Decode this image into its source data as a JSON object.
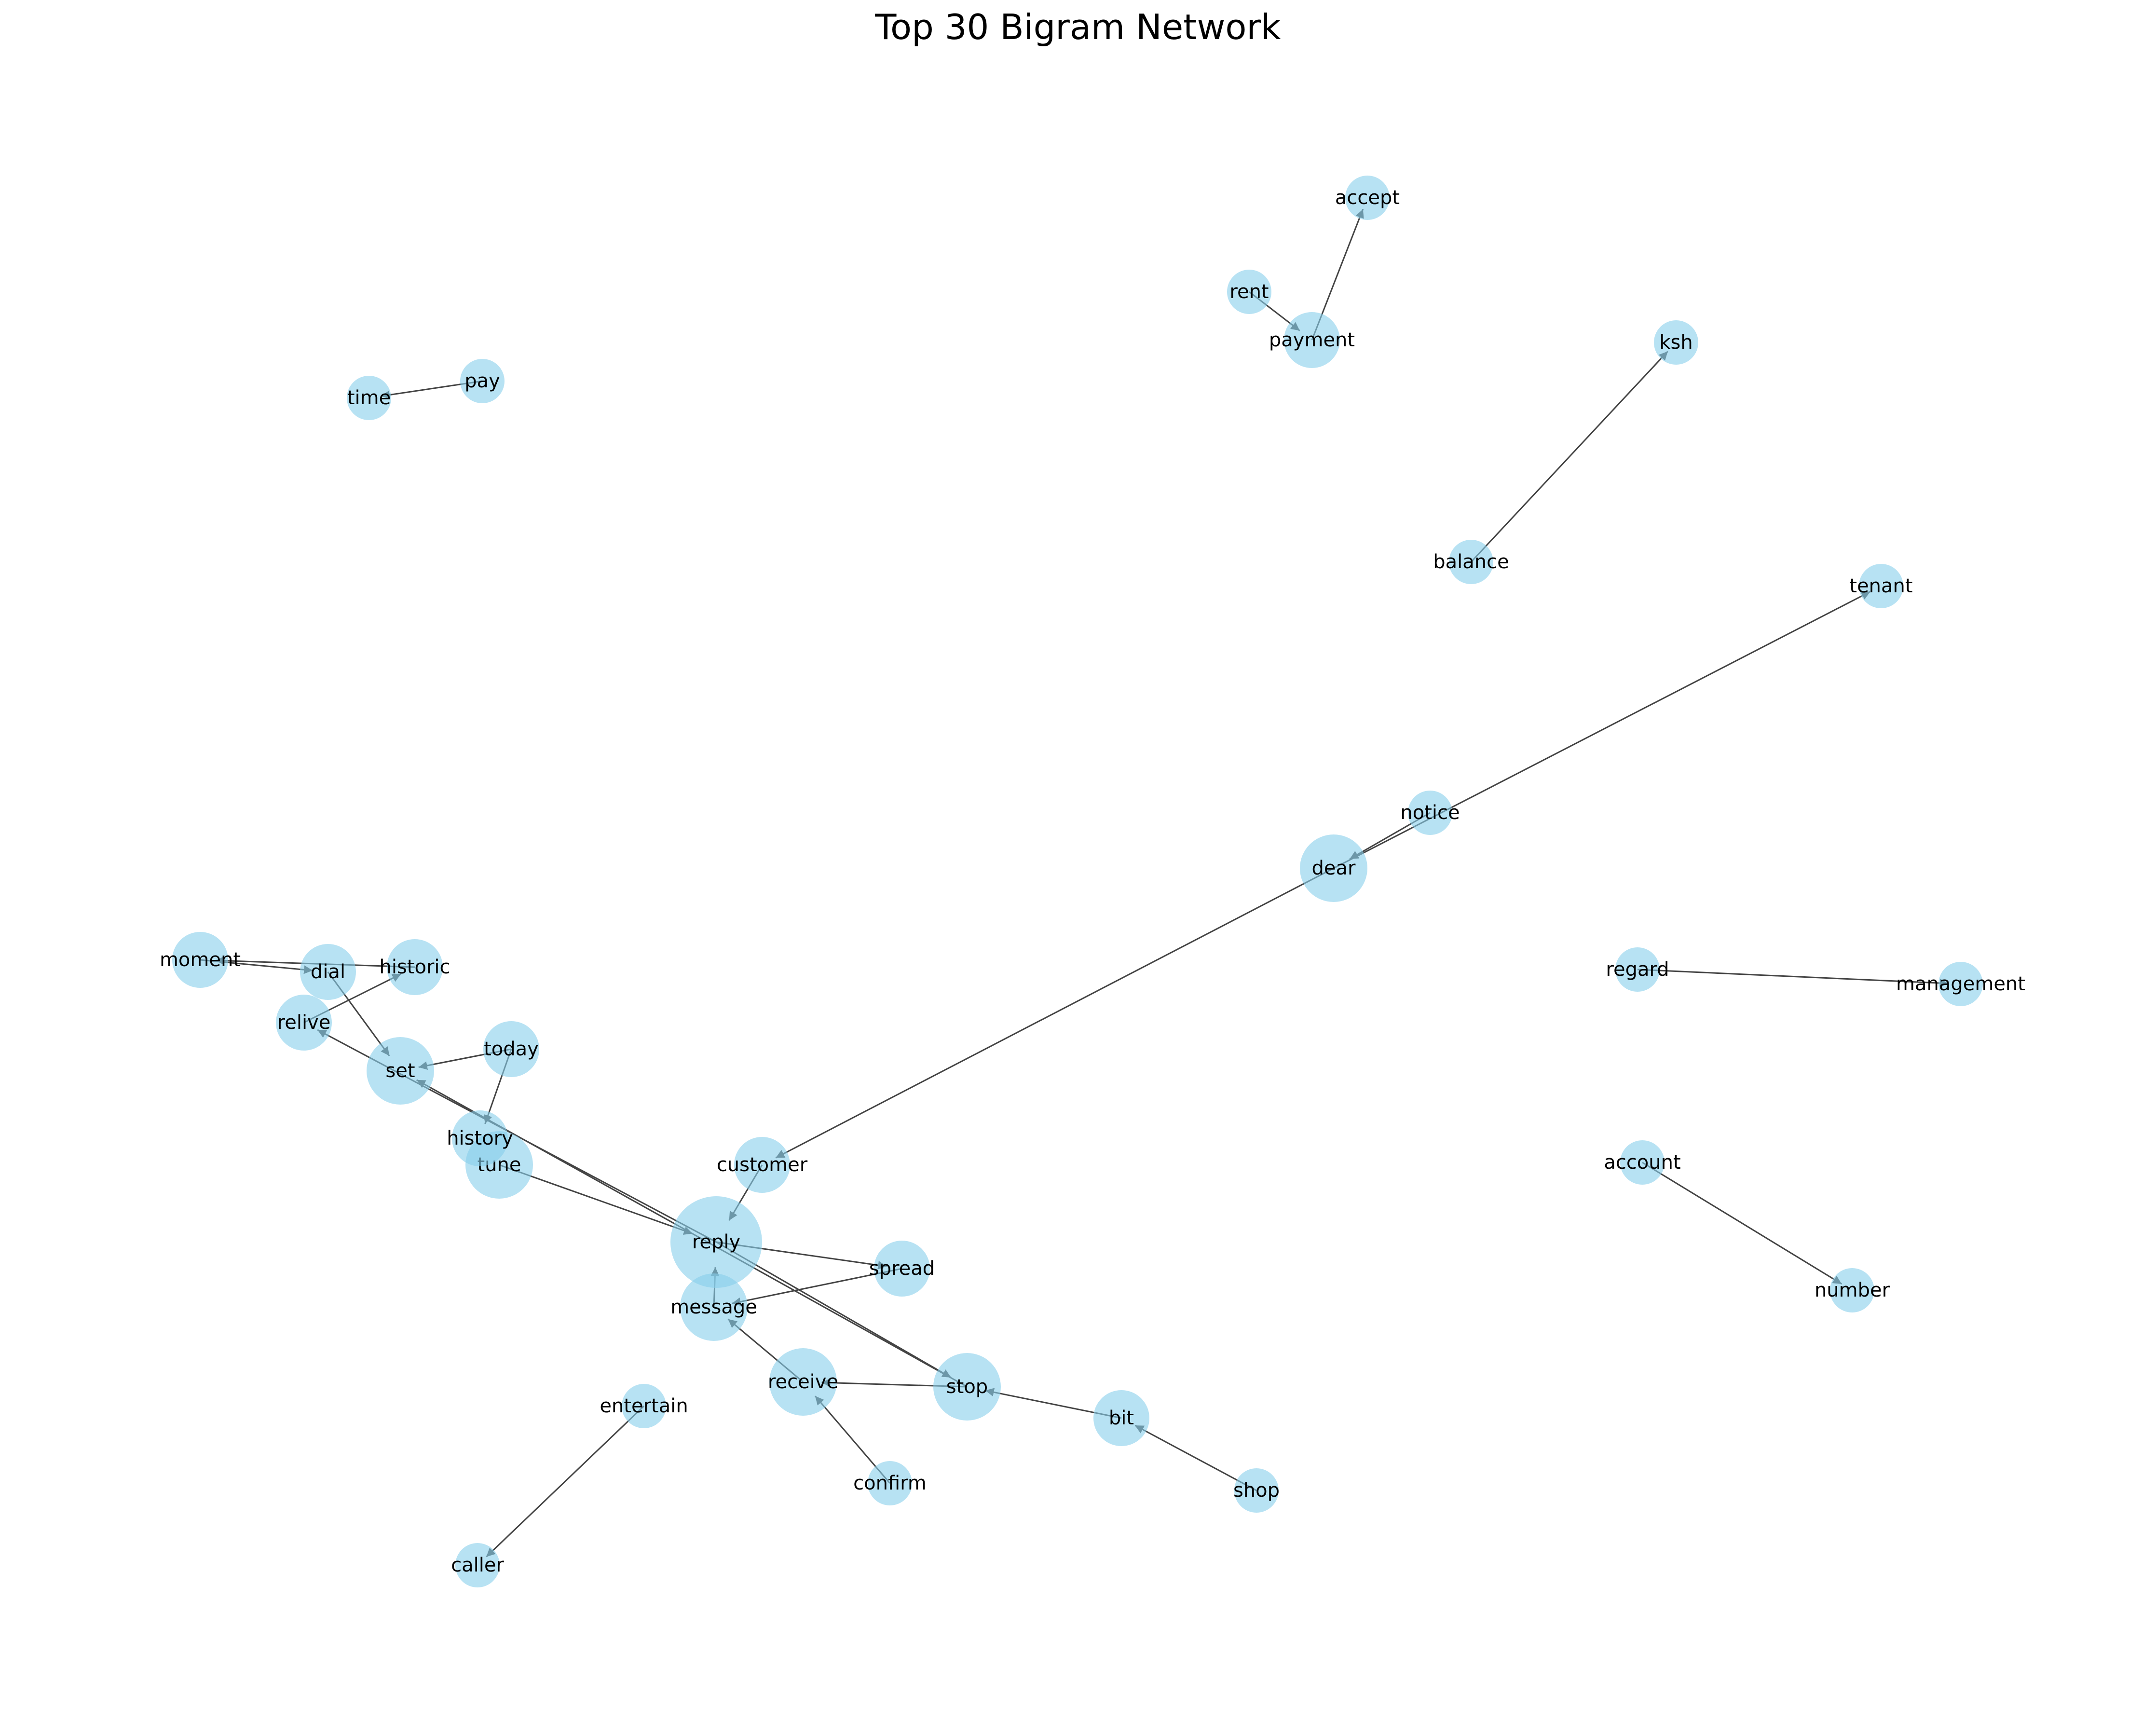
{
  "title": "Top 30 Bigram Network",
  "style": {
    "node_color": "#87ceeb",
    "edge_color": "#444444"
  },
  "nodes": [
    {
      "id": "reply",
      "size": "xl"
    },
    {
      "id": "dear",
      "size": "l"
    },
    {
      "id": "tune",
      "size": "l"
    },
    {
      "id": "stop",
      "size": "l"
    },
    {
      "id": "message",
      "size": "l"
    },
    {
      "id": "set",
      "size": "l"
    },
    {
      "id": "receive",
      "size": "l"
    },
    {
      "id": "moment",
      "size": "m"
    },
    {
      "id": "historic",
      "size": "m"
    },
    {
      "id": "dial",
      "size": "m"
    },
    {
      "id": "today",
      "size": "m"
    },
    {
      "id": "customer",
      "size": "m"
    },
    {
      "id": "spread",
      "size": "m"
    },
    {
      "id": "bit",
      "size": "m"
    },
    {
      "id": "payment",
      "size": "m"
    },
    {
      "id": "relive",
      "size": "m"
    },
    {
      "id": "history",
      "size": "m"
    },
    {
      "id": "accept",
      "size": "s"
    },
    {
      "id": "rent",
      "size": "s"
    },
    {
      "id": "ksh",
      "size": "s"
    },
    {
      "id": "time",
      "size": "s"
    },
    {
      "id": "pay",
      "size": "s"
    },
    {
      "id": "balance",
      "size": "s"
    },
    {
      "id": "tenant",
      "size": "s"
    },
    {
      "id": "notice",
      "size": "s"
    },
    {
      "id": "regard",
      "size": "s"
    },
    {
      "id": "management",
      "size": "s"
    },
    {
      "id": "account",
      "size": "s"
    },
    {
      "id": "number",
      "size": "s"
    },
    {
      "id": "entertain",
      "size": "s"
    },
    {
      "id": "caller",
      "size": "s"
    },
    {
      "id": "confirm",
      "size": "s"
    },
    {
      "id": "shop",
      "size": "s"
    }
  ],
  "edges": [
    {
      "source": "pay",
      "target": "time"
    },
    {
      "source": "rent",
      "target": "payment"
    },
    {
      "source": "payment",
      "target": "accept"
    },
    {
      "source": "balance",
      "target": "ksh"
    },
    {
      "source": "dear",
      "target": "tenant"
    },
    {
      "source": "notice",
      "target": "dear"
    },
    {
      "source": "dear",
      "target": "customer"
    },
    {
      "source": "customer",
      "target": "reply"
    },
    {
      "source": "regard",
      "target": "management"
    },
    {
      "source": "account",
      "target": "number"
    },
    {
      "source": "moment",
      "target": "dial"
    },
    {
      "source": "historic",
      "target": "moment"
    },
    {
      "source": "relive",
      "target": "historic"
    },
    {
      "source": "dial",
      "target": "set"
    },
    {
      "source": "today",
      "target": "set"
    },
    {
      "source": "today",
      "target": "history"
    },
    {
      "source": "tune",
      "target": "reply"
    },
    {
      "source": "reply",
      "target": "relive"
    },
    {
      "source": "stop",
      "target": "set"
    },
    {
      "source": "reply",
      "target": "stop"
    },
    {
      "source": "message",
      "target": "reply"
    },
    {
      "source": "reply",
      "target": "spread"
    },
    {
      "source": "spread",
      "target": "message"
    },
    {
      "source": "receive",
      "target": "message"
    },
    {
      "source": "stop",
      "target": "receive"
    },
    {
      "source": "bit",
      "target": "stop"
    },
    {
      "source": "shop",
      "target": "bit"
    },
    {
      "source": "confirm",
      "target": "receive"
    },
    {
      "source": "entertain",
      "target": "caller"
    }
  ]
}
